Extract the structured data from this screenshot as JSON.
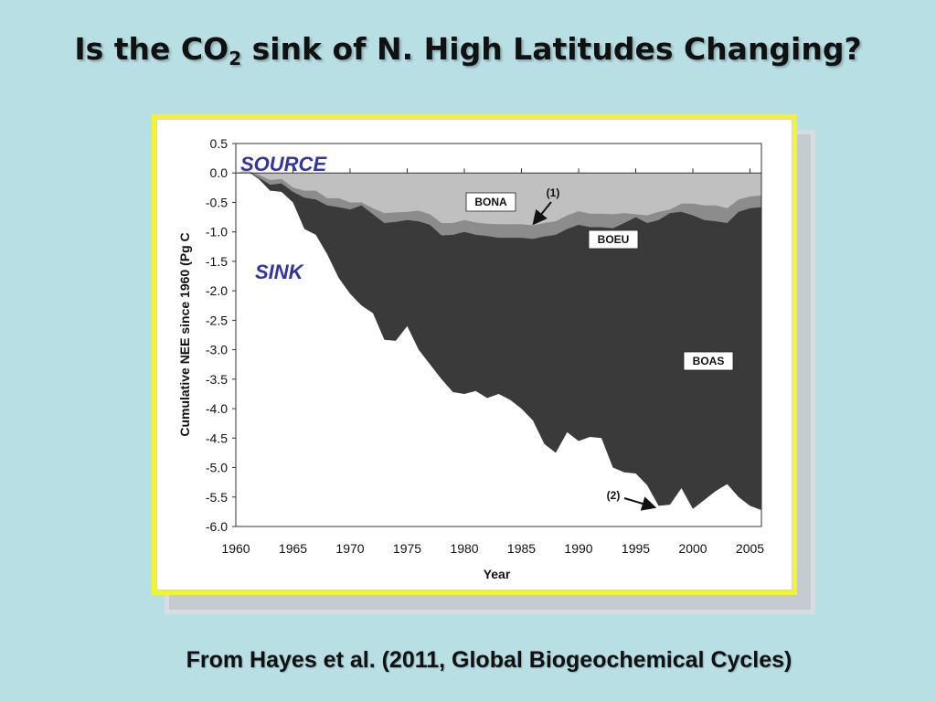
{
  "slide": {
    "title_pre": "Is the CO",
    "title_sub": "2",
    "title_post": " sink of N. High Latitudes Changing?",
    "footer": "From Hayes et al. (2011, Global Biogeochemical Cycles)"
  },
  "chart_data": {
    "type": "area",
    "xlabel": "Year",
    "ylabel": "Cumulative NEE since 1960 (Pg C",
    "xlim": [
      1960,
      2006
    ],
    "ylim": [
      -6.0,
      0.5
    ],
    "xticks": [
      1960,
      1965,
      1970,
      1975,
      1980,
      1985,
      1990,
      1995,
      2000,
      2005
    ],
    "yticks": [
      "0.5",
      "0.0",
      "-0.5",
      "-1.0",
      "-1.5",
      "-2.0",
      "-2.5",
      "-3.0",
      "-3.5",
      "-4.0",
      "-4.5",
      "-5.0",
      "-5.5",
      "-6.0"
    ],
    "ytick_values": [
      0.5,
      0.0,
      -0.5,
      -1.0,
      -1.5,
      -2.0,
      -2.5,
      -3.0,
      -3.5,
      -4.0,
      -4.5,
      -5.0,
      -5.5,
      -6.0
    ],
    "x": [
      1960,
      1961,
      1962,
      1963,
      1964,
      1965,
      1966,
      1967,
      1968,
      1969,
      1970,
      1971,
      1972,
      1973,
      1974,
      1975,
      1976,
      1977,
      1978,
      1979,
      1980,
      1981,
      1982,
      1983,
      1984,
      1985,
      1986,
      1987,
      1988,
      1989,
      1990,
      1991,
      1992,
      1993,
      1994,
      1995,
      1996,
      1997,
      1998,
      1999,
      2000,
      2001,
      2002,
      2003,
      2004,
      2005,
      2006
    ],
    "series": [
      {
        "name": "BONA",
        "color": "#c0c0c0",
        "values": [
          0.0,
          0.05,
          -0.03,
          -0.12,
          -0.1,
          -0.25,
          -0.3,
          -0.3,
          -0.43,
          -0.43,
          -0.5,
          -0.5,
          -0.6,
          -0.68,
          -0.67,
          -0.66,
          -0.64,
          -0.7,
          -0.85,
          -0.85,
          -0.8,
          -0.84,
          -0.86,
          -0.87,
          -0.87,
          -0.87,
          -0.89,
          -0.85,
          -0.82,
          -0.72,
          -0.65,
          -0.69,
          -0.69,
          -0.7,
          -0.68,
          -0.7,
          -0.72,
          -0.66,
          -0.62,
          -0.52,
          -0.52,
          -0.55,
          -0.55,
          -0.6,
          -0.45,
          -0.4,
          -0.38
        ]
      },
      {
        "name": "BOEU",
        "color": "#8c8c8c",
        "values": [
          0.0,
          0.04,
          -0.08,
          -0.2,
          -0.18,
          -0.32,
          -0.42,
          -0.45,
          -0.55,
          -0.58,
          -0.62,
          -0.55,
          -0.7,
          -0.85,
          -0.83,
          -0.8,
          -0.82,
          -0.88,
          -1.06,
          -1.05,
          -1.0,
          -1.05,
          -1.07,
          -1.1,
          -1.1,
          -1.1,
          -1.12,
          -1.08,
          -1.05,
          -0.95,
          -0.88,
          -0.92,
          -0.92,
          -0.94,
          -0.85,
          -0.75,
          -0.85,
          -0.8,
          -0.68,
          -0.66,
          -0.72,
          -0.8,
          -0.82,
          -0.85,
          -0.66,
          -0.6,
          -0.58
        ]
      },
      {
        "name": "BOAS",
        "color": "#3a3a3a",
        "values": [
          0.0,
          0.03,
          -0.1,
          -0.3,
          -0.32,
          -0.5,
          -0.95,
          -1.05,
          -1.38,
          -1.78,
          -2.05,
          -2.25,
          -2.38,
          -2.83,
          -2.85,
          -2.6,
          -3.0,
          -3.25,
          -3.5,
          -3.72,
          -3.75,
          -3.7,
          -3.82,
          -3.75,
          -3.85,
          -4.0,
          -4.2,
          -4.6,
          -4.75,
          -4.4,
          -4.55,
          -4.48,
          -4.5,
          -5.0,
          -5.08,
          -5.1,
          -5.3,
          -5.65,
          -5.63,
          -5.35,
          -5.7,
          -5.55,
          -5.4,
          -5.28,
          -5.5,
          -5.65,
          -5.72
        ]
      }
    ],
    "annotations": [
      {
        "text": "SOURCE"
      },
      {
        "text": "SINK"
      },
      {
        "text": "(1)",
        "arrow_to": [
          1986,
          -0.9
        ]
      },
      {
        "text": "(2)",
        "arrow_to": [
          1997,
          -5.65
        ]
      }
    ]
  }
}
